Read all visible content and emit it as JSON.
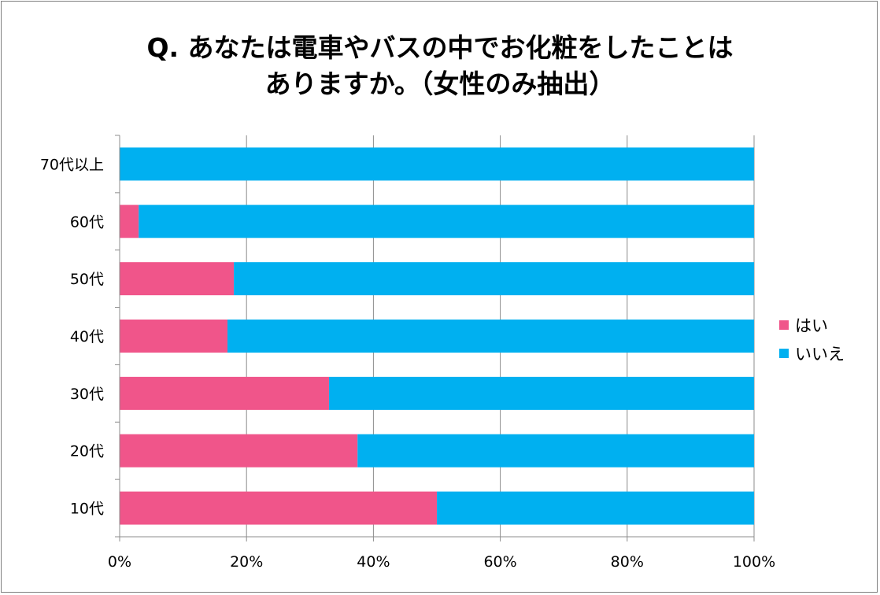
{
  "chart_data": {
    "type": "bar",
    "orientation": "horizontal",
    "stacked": "percent",
    "title_lines": [
      "Q. あなたは電車やバスの中でお化粧をしたことは",
      "ありますか。（女性のみ抽出）"
    ],
    "categories": [
      "70代以上",
      "60代",
      "50代",
      "40代",
      "30代",
      "20代",
      "10代"
    ],
    "series": [
      {
        "name": "はい",
        "color": "#f0558a",
        "values": [
          0,
          3,
          18,
          17,
          33,
          37.5,
          50
        ]
      },
      {
        "name": "いいえ",
        "color": "#00b0f0",
        "values": [
          100,
          97,
          82,
          83,
          67,
          62.5,
          50
        ]
      }
    ],
    "x_ticks": [
      "0%",
      "20%",
      "40%",
      "60%",
      "80%",
      "100%"
    ],
    "xlim": [
      0,
      100
    ],
    "grid": true,
    "legend_position": "right"
  }
}
